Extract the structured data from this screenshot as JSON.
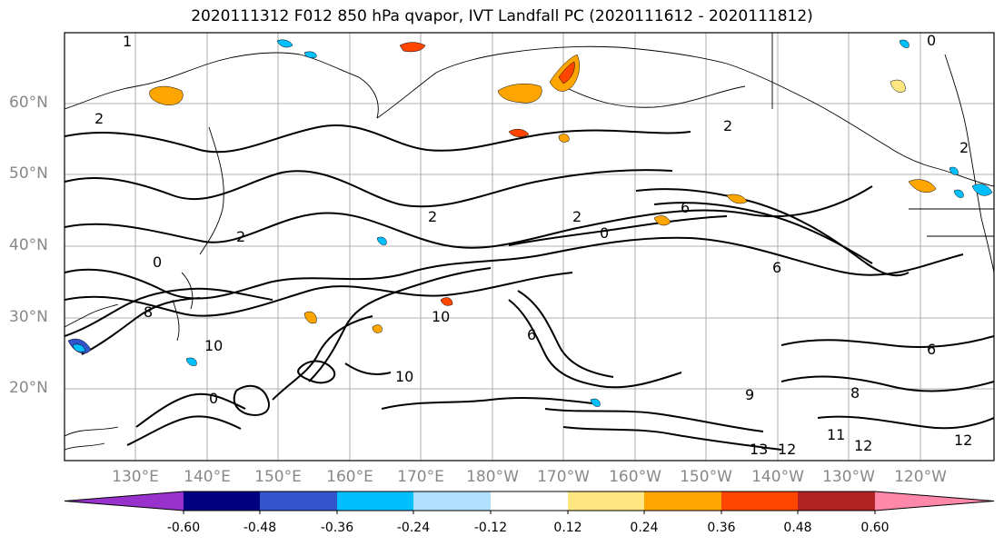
{
  "title": "2020111312 F012 850 hPa qvapor, IVT Landfall PC (2020111612 - 2020111812)",
  "lat_labels": [
    "60°N",
    "50°N",
    "40°N",
    "30°N",
    "20°N"
  ],
  "lon_labels": [
    "130°E",
    "140°E",
    "150°E",
    "160°E",
    "170°E",
    "180°W",
    "170°W",
    "160°W",
    "150°W",
    "140°W",
    "130°W",
    "120°W"
  ],
  "contour_labels": [
    "1",
    "2",
    "2",
    "2",
    "2",
    "2",
    "2",
    "6",
    "6",
    "6",
    "8",
    "10",
    "10",
    "8",
    "9",
    "10",
    "12",
    "13",
    "12",
    "12",
    "11",
    "6",
    "0",
    "0",
    "0",
    "0"
  ],
  "colorbar": {
    "ticks": [
      "-0.60",
      "-0.48",
      "-0.36",
      "-0.24",
      "-0.12",
      "0.12",
      "0.24",
      "0.36",
      "0.48",
      "0.60"
    ],
    "colors": [
      "#9932CC",
      "#000080",
      "#3355CC",
      "#00BFFF",
      "#B0E0FF",
      "#FFFFFF",
      "#FFE680",
      "#FFA500",
      "#FF4500",
      "#B22222",
      "#FF88AA"
    ]
  }
}
